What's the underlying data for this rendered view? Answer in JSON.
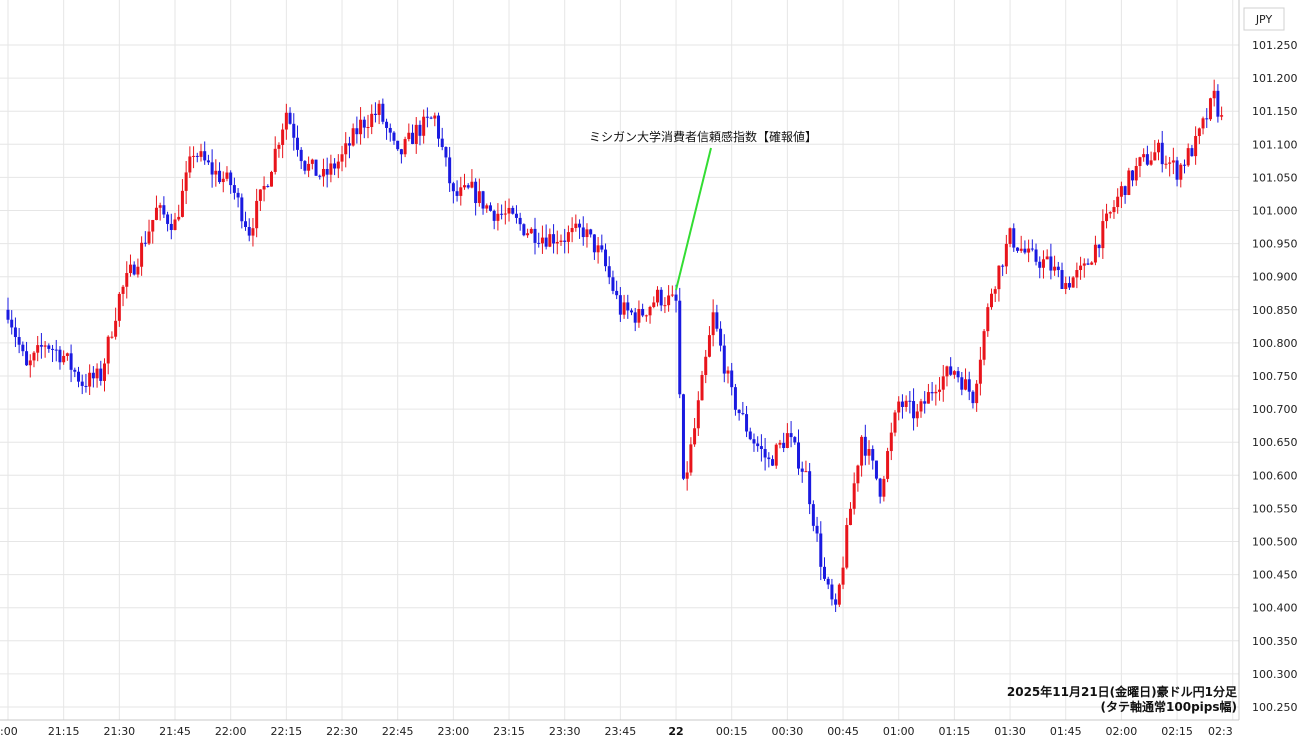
{
  "chart_data": {
    "type": "candlestick",
    "currency_label": "JPY",
    "annotation": "ミシガン大学消費者信頼感指数【確報値】",
    "caption_line1": "2025年11月21日(金曜日)豪ドル円1分足",
    "caption_line2": "(タテ軸通常100pips幅)",
    "ylim": [
      100.25,
      101.27
    ],
    "y_ticks": [
      "101.250",
      "101.200",
      "101.150",
      "101.100",
      "101.050",
      "101.000",
      "100.950",
      "100.900",
      "100.850",
      "100.800",
      "100.750",
      "100.700",
      "100.650",
      "100.600",
      "100.550",
      "100.500",
      "100.450",
      "100.400",
      "100.350",
      "100.300",
      "100.250"
    ],
    "x_ticks": [
      ":00",
      "21:15",
      "21:30",
      "21:45",
      "22:00",
      "22:15",
      "22:30",
      "22:45",
      "23:00",
      "23:15",
      "23:30",
      "23:45",
      "22",
      "00:15",
      "00:30",
      "00:45",
      "01:00",
      "01:15",
      "01:30",
      "01:45",
      "02:00",
      "02:15",
      "02:3"
    ],
    "x_tick_bold_index": 12,
    "grid": true,
    "up_color": "#e8141b",
    "down_color": "#1a1ae0",
    "annotation_line_color": "#33dd33",
    "candles_approx_close_path": [
      [
        "21:00",
        100.85
      ],
      [
        "21:05",
        100.76
      ],
      [
        "21:10",
        100.8
      ],
      [
        "21:15",
        100.78
      ],
      [
        "21:20",
        100.74
      ],
      [
        "21:25",
        100.75
      ],
      [
        "21:30",
        100.87
      ],
      [
        "21:35",
        100.93
      ],
      [
        "21:40",
        101.0
      ],
      [
        "21:45",
        100.98
      ],
      [
        "21:50",
        101.09
      ],
      [
        "21:55",
        101.06
      ],
      [
        "22:00",
        101.04
      ],
      [
        "22:05",
        100.97
      ],
      [
        "22:10",
        101.05
      ],
      [
        "22:15",
        101.15
      ],
      [
        "22:20",
        101.07
      ],
      [
        "22:25",
        101.05
      ],
      [
        "22:30",
        101.08
      ],
      [
        "22:35",
        101.13
      ],
      [
        "22:40",
        101.15
      ],
      [
        "22:45",
        101.08
      ],
      [
        "22:50",
        101.12
      ],
      [
        "22:55",
        101.14
      ],
      [
        "23:00",
        101.02
      ],
      [
        "23:05",
        101.03
      ],
      [
        "23:10",
        101.0
      ],
      [
        "23:15",
        100.99
      ],
      [
        "23:20",
        100.97
      ],
      [
        "23:25",
        100.96
      ],
      [
        "23:30",
        100.96
      ],
      [
        "23:35",
        100.97
      ],
      [
        "23:40",
        100.93
      ],
      [
        "23:45",
        100.85
      ],
      [
        "23:50",
        100.84
      ],
      [
        "23:55",
        100.87
      ],
      [
        "24:00",
        100.86
      ],
      [
        "24:02",
        100.58
      ],
      [
        "24:05",
        100.67
      ],
      [
        "24:10",
        100.84
      ],
      [
        "24:15",
        100.72
      ],
      [
        "24:20",
        100.66
      ],
      [
        "24:25",
        100.62
      ],
      [
        "24:30",
        100.66
      ],
      [
        "24:35",
        100.6
      ],
      [
        "24:40",
        100.44
      ],
      [
        "24:43",
        100.39
      ],
      [
        "24:47",
        100.55
      ],
      [
        "24:50",
        100.66
      ],
      [
        "24:55",
        100.58
      ],
      [
        "25:00",
        100.71
      ],
      [
        "25:05",
        100.69
      ],
      [
        "25:10",
        100.74
      ],
      [
        "25:15",
        100.76
      ],
      [
        "25:20",
        100.72
      ],
      [
        "25:25",
        100.88
      ],
      [
        "25:30",
        100.96
      ],
      [
        "25:35",
        100.93
      ],
      [
        "25:40",
        100.92
      ],
      [
        "25:45",
        100.89
      ],
      [
        "25:50",
        100.91
      ],
      [
        "25:55",
        100.97
      ],
      [
        "26:00",
        101.03
      ],
      [
        "26:05",
        101.07
      ],
      [
        "26:10",
        101.09
      ],
      [
        "26:15",
        101.06
      ],
      [
        "26:20",
        101.1
      ],
      [
        "26:25",
        101.17
      ],
      [
        "26:28",
        101.12
      ]
    ]
  }
}
